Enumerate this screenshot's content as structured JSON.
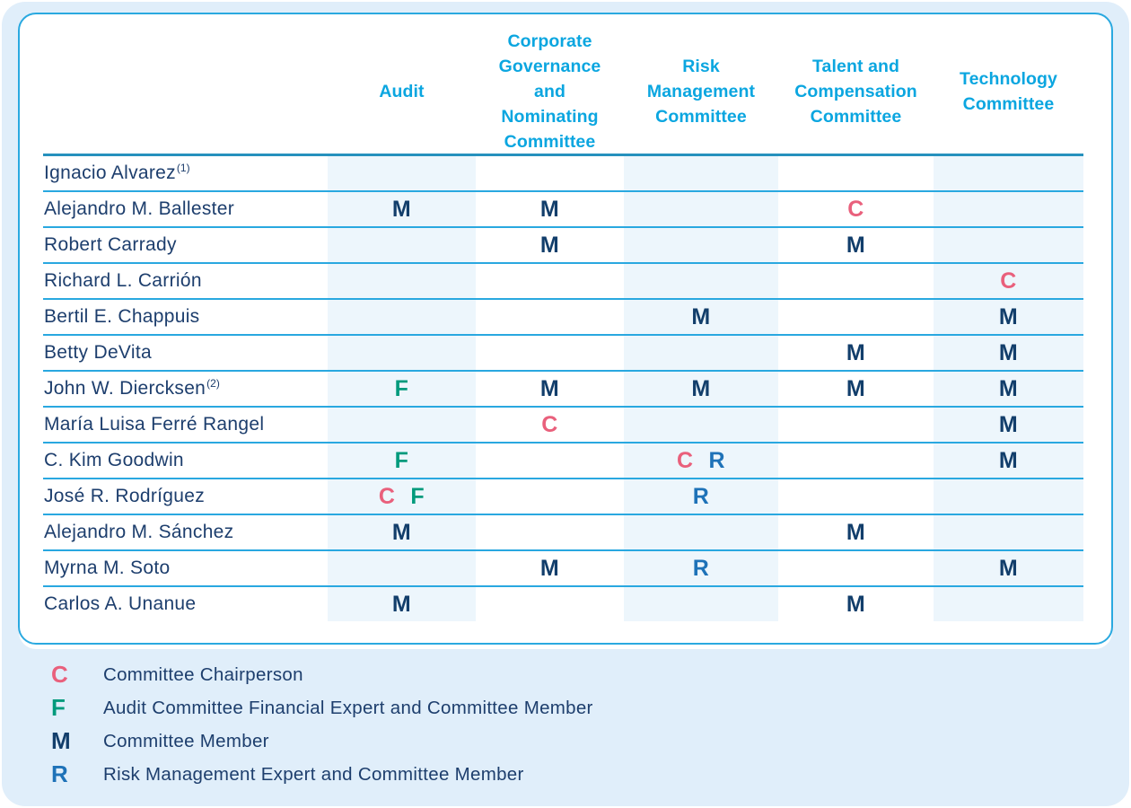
{
  "colors": {
    "page_background": "#e0eefa",
    "card_background": "#ffffff",
    "card_border": "#2aa9e0",
    "header_text": "#0ba6e0",
    "header_underline": "#2691bd",
    "row_line": "#29a8e0",
    "column_stripe": "#edf6fc",
    "name_text": "#1d3e6d",
    "markers": {
      "C": "#e9607c",
      "F": "#019a7c",
      "M": "#123e6b",
      "R": "#1e72b8"
    }
  },
  "table": {
    "columns": [
      {
        "id": "audit",
        "label": "Audit",
        "display": "Audit",
        "striped": true
      },
      {
        "id": "governance",
        "label": "Corporate Governance and Nominating Committee",
        "display": "Corporate\nGovernance\nand\nNominating\nCommittee",
        "striped": false
      },
      {
        "id": "risk",
        "label": "Risk Management Committee",
        "display": "Risk\nManagement\nCommittee",
        "striped": true
      },
      {
        "id": "talent",
        "label": "Talent and Compensation Committee",
        "display": "Talent and\nCompensation\nCommittee",
        "striped": false
      },
      {
        "id": "technology",
        "label": "Technology Committee",
        "display": "Technology\nCommittee",
        "striped": true
      }
    ],
    "rows": [
      {
        "name": "Ignacio Alvarez",
        "footnote": "(1)",
        "cells": [
          [],
          [],
          [],
          [],
          []
        ]
      },
      {
        "name": "Alejandro M. Ballester",
        "cells": [
          [
            "M"
          ],
          [
            "M"
          ],
          [],
          [
            "C"
          ],
          []
        ]
      },
      {
        "name": "Robert Carrady",
        "cells": [
          [],
          [
            "M"
          ],
          [],
          [
            "M"
          ],
          []
        ]
      },
      {
        "name": "Richard L. Carrión",
        "cells": [
          [],
          [],
          [],
          [],
          [
            "C"
          ]
        ]
      },
      {
        "name": "Bertil E. Chappuis",
        "cells": [
          [],
          [],
          [
            "M"
          ],
          [],
          [
            "M"
          ]
        ]
      },
      {
        "name": "Betty DeVita",
        "cells": [
          [],
          [],
          [],
          [
            "M"
          ],
          [
            "M"
          ]
        ]
      },
      {
        "name": "John W. Diercksen",
        "footnote": "(2)",
        "cells": [
          [
            "F"
          ],
          [
            "M"
          ],
          [
            "M"
          ],
          [
            "M"
          ],
          [
            "M"
          ]
        ]
      },
      {
        "name": "María Luisa Ferré Rangel",
        "cells": [
          [],
          [
            "C"
          ],
          [],
          [],
          [
            "M"
          ]
        ]
      },
      {
        "name": "C. Kim Goodwin",
        "cells": [
          [
            "F"
          ],
          [],
          [
            "C",
            "R"
          ],
          [],
          [
            "M"
          ]
        ]
      },
      {
        "name": "José R. Rodríguez",
        "cells": [
          [
            "C",
            "F"
          ],
          [],
          [
            "R"
          ],
          [],
          []
        ]
      },
      {
        "name": "Alejandro M. Sánchez",
        "cells": [
          [
            "M"
          ],
          [],
          [],
          [
            "M"
          ],
          []
        ]
      },
      {
        "name": "Myrna M. Soto",
        "cells": [
          [],
          [
            "M"
          ],
          [
            "R"
          ],
          [],
          [
            "M"
          ]
        ]
      },
      {
        "name": "Carlos A. Unanue",
        "cells": [
          [
            "M"
          ],
          [],
          [],
          [
            "M"
          ],
          []
        ]
      }
    ]
  },
  "legend": {
    "items": [
      {
        "key": "C",
        "label": "Committee Chairperson"
      },
      {
        "key": "F",
        "label": "Audit Committee Financial Expert and Committee Member"
      },
      {
        "key": "M",
        "label": "Committee Member"
      },
      {
        "key": "R",
        "label": "Risk Management Expert and Committee Member"
      }
    ]
  }
}
